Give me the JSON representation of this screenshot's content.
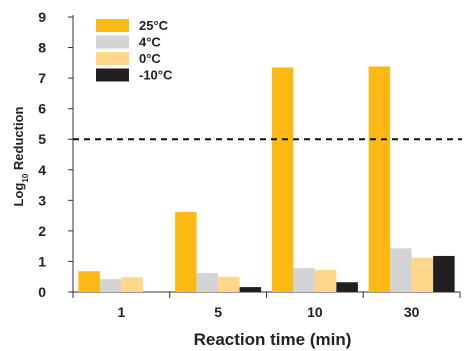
{
  "chart_data": {
    "type": "bar",
    "categories": [
      "1",
      "5",
      "10",
      "30"
    ],
    "series": [
      {
        "name": "25°C",
        "color": "#FDB913",
        "values": [
          0.68,
          2.62,
          7.35,
          7.38
        ]
      },
      {
        "name": "4°C",
        "color": "#D4D4D4",
        "values": [
          0.42,
          0.62,
          0.78,
          1.43
        ]
      },
      {
        "name": "0°C",
        "color": "#FFD68A",
        "values": [
          0.48,
          0.5,
          0.72,
          1.12
        ]
      },
      {
        "name": "-10°C",
        "color": "#231F20",
        "values": [
          0.0,
          0.16,
          0.32,
          1.18
        ]
      }
    ],
    "xlabel": "Reaction time (min)",
    "ylabel_main": "Log",
    "ylabel_sub": "10",
    "ylabel_rest": " Reduction",
    "ylim": [
      0,
      9
    ],
    "yticks": [
      "0",
      "1",
      "2",
      "3",
      "4",
      "5",
      "6",
      "7",
      "8",
      "9"
    ],
    "reference_line": {
      "y": 5,
      "style": "dashed"
    },
    "legend_position": "top-left",
    "grid": false
  }
}
